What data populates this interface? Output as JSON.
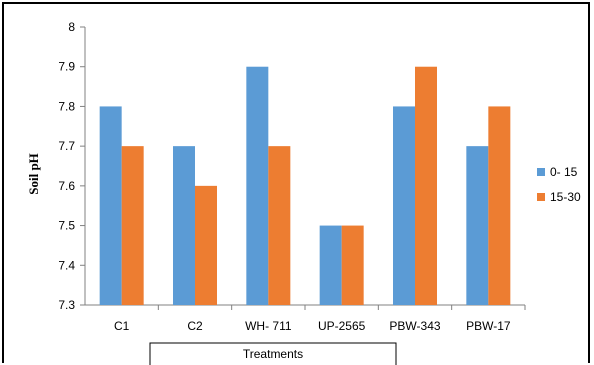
{
  "chart_data": {
    "type": "bar",
    "categories": [
      "C1",
      "C2",
      "WH- 711",
      "UP-2565",
      "PBW-343",
      "PBW-17"
    ],
    "series": [
      {
        "name": "0- 15",
        "values": [
          7.8,
          7.7,
          7.9,
          7.5,
          7.8,
          7.7
        ],
        "color": "#5B9BD5"
      },
      {
        "name": "15-30",
        "values": [
          7.7,
          7.6,
          7.7,
          7.5,
          7.9,
          7.8
        ],
        "color": "#ED7D31"
      }
    ],
    "title": "",
    "xlabel": "Treatments",
    "ylabel": "Soil pH",
    "ylim": [
      7.3,
      8.0
    ],
    "yticks": [
      "7.3",
      "7.4",
      "7.5",
      "7.6",
      "7.7",
      "7.8",
      "7.9",
      "8"
    ],
    "grid": false,
    "legend_position": "right"
  }
}
